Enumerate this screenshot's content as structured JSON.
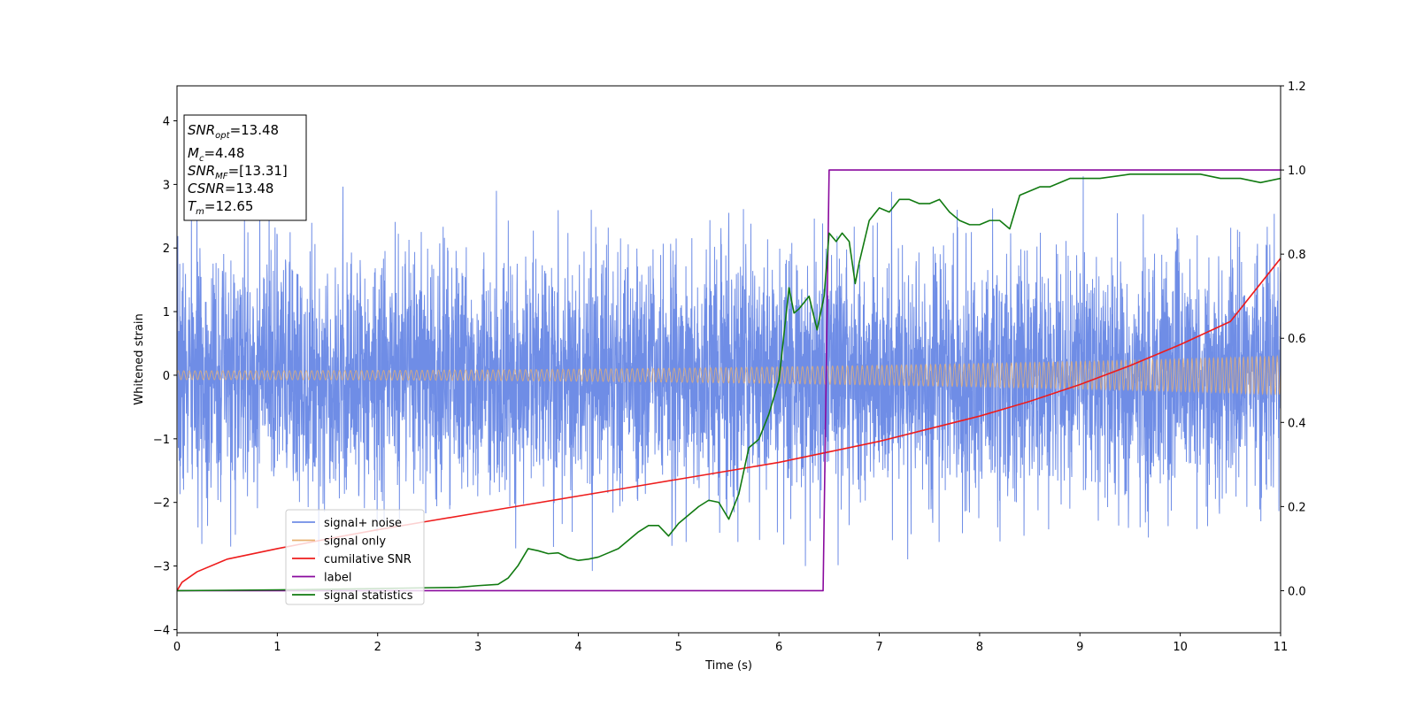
{
  "chart_data": {
    "type": "line",
    "xlabel": "Time (s)",
    "ylabel": "Whitened strain",
    "xlim": [
      0,
      11
    ],
    "ylim_left": [
      -4.05,
      4.55
    ],
    "ylim_right": [
      -0.1,
      1.2
    ],
    "xticks": [
      "0",
      "1",
      "2",
      "3",
      "4",
      "5",
      "6",
      "7",
      "8",
      "9",
      "10",
      "11"
    ],
    "yticks_left": [
      "−4",
      "−3",
      "−2",
      "−1",
      "0",
      "1",
      "2",
      "3",
      "4"
    ],
    "yticks_right": [
      "0.0",
      "0.2",
      "0.4",
      "0.6",
      "0.8",
      "1.0",
      "1.2"
    ],
    "grid": false,
    "legend_position": "lower-left",
    "info_box": {
      "snr_opt": {
        "base": "SNR",
        "sub": "opt",
        "value": "=13.48"
      },
      "mc": {
        "base": "M",
        "sub": "c",
        "value": "=4.48"
      },
      "snr_mf": {
        "base": "SNR",
        "sub": "MF",
        "value": "=[13.31]"
      },
      "csnr": {
        "base": "CSNR",
        "value": "=13.48"
      },
      "tm": {
        "base": "T",
        "sub": "m",
        "value": "=12.65"
      }
    },
    "series": [
      {
        "name": "signal+ noise",
        "color": "#6f8de6",
        "axis": "left",
        "kind": "noise",
        "sigma": 0.95,
        "spike_max": 3.6,
        "spike_min": -3.65
      },
      {
        "name": "signal only",
        "color": "#e8b070",
        "axis": "left",
        "kind": "chirp",
        "amplitude_start": 0.07,
        "amplitude_end": 0.3
      },
      {
        "name": "cumilative SNR",
        "color": "#ee1c1c",
        "axis": "right",
        "x": [
          0,
          0.05,
          0.2,
          0.5,
          1,
          1.5,
          2,
          2.5,
          3,
          3.5,
          4,
          4.5,
          5,
          5.5,
          6,
          6.5,
          7,
          7.5,
          8,
          8.5,
          9,
          9.5,
          10,
          10.5,
          11
        ],
        "y": [
          0.0,
          0.02,
          0.045,
          0.075,
          0.1,
          0.123,
          0.145,
          0.165,
          0.185,
          0.205,
          0.225,
          0.245,
          0.265,
          0.285,
          0.305,
          0.33,
          0.355,
          0.385,
          0.415,
          0.45,
          0.49,
          0.535,
          0.585,
          0.64,
          0.79
        ]
      },
      {
        "name": "label",
        "color": "#8a0a9e",
        "axis": "right",
        "x": [
          0,
          6.44,
          6.5,
          11
        ],
        "y": [
          0,
          0,
          1,
          1
        ]
      },
      {
        "name": "signal statistics",
        "color": "#117a11",
        "axis": "right",
        "x": [
          0,
          1,
          2,
          2.5,
          2.8,
          3,
          3.2,
          3.3,
          3.4,
          3.5,
          3.6,
          3.7,
          3.8,
          3.9,
          4,
          4.1,
          4.2,
          4.3,
          4.4,
          4.5,
          4.6,
          4.7,
          4.8,
          4.9,
          5,
          5.1,
          5.2,
          5.3,
          5.4,
          5.5,
          5.6,
          5.7,
          5.75,
          5.8,
          5.85,
          5.9,
          6,
          6.1,
          6.15,
          6.2,
          6.3,
          6.38,
          6.45,
          6.5,
          6.57,
          6.63,
          6.7,
          6.76,
          6.8,
          6.9,
          7,
          7.1,
          7.2,
          7.3,
          7.4,
          7.5,
          7.6,
          7.7,
          7.8,
          7.9,
          8,
          8.1,
          8.2,
          8.3,
          8.4,
          8.5,
          8.6,
          8.7,
          8.8,
          8.9,
          9,
          9.2,
          9.5,
          9.8,
          10,
          10.2,
          10.4,
          10.6,
          10.8,
          11
        ],
        "y": [
          0,
          0.002,
          0.005,
          0.007,
          0.008,
          0.012,
          0.015,
          0.03,
          0.06,
          0.1,
          0.095,
          0.088,
          0.09,
          0.078,
          0.072,
          0.075,
          0.08,
          0.09,
          0.1,
          0.12,
          0.14,
          0.155,
          0.155,
          0.13,
          0.16,
          0.18,
          0.2,
          0.215,
          0.21,
          0.17,
          0.23,
          0.34,
          0.35,
          0.36,
          0.39,
          0.42,
          0.5,
          0.72,
          0.66,
          0.67,
          0.7,
          0.62,
          0.7,
          0.85,
          0.83,
          0.85,
          0.83,
          0.73,
          0.78,
          0.88,
          0.91,
          0.9,
          0.93,
          0.93,
          0.92,
          0.92,
          0.93,
          0.9,
          0.88,
          0.87,
          0.87,
          0.88,
          0.88,
          0.86,
          0.94,
          0.95,
          0.96,
          0.96,
          0.97,
          0.98,
          0.98,
          0.98,
          0.99,
          0.99,
          0.99,
          0.99,
          0.98,
          0.98,
          0.97,
          0.98
        ]
      }
    ]
  }
}
